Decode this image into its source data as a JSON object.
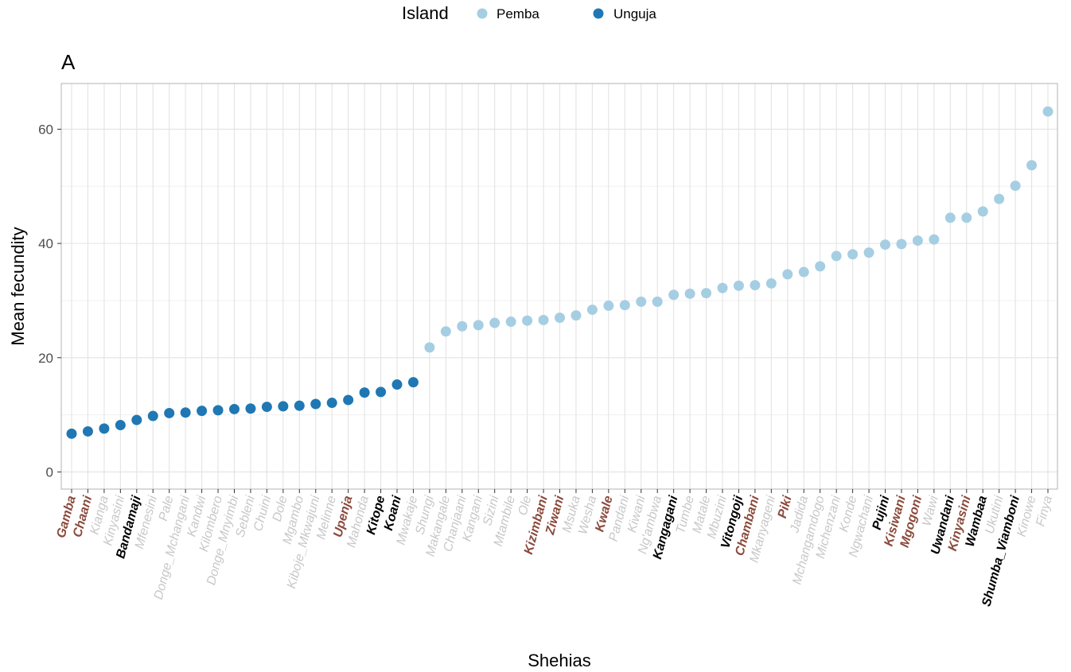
{
  "chart_data": {
    "type": "scatter",
    "panel_tag": "A",
    "xlabel": "Shehias",
    "ylabel": "Mean fecundity",
    "ylim": [
      -3,
      68
    ],
    "yticks": [
      0,
      20,
      40,
      60
    ],
    "grid": true,
    "legend": {
      "title": "Island",
      "position": "top",
      "entries": [
        {
          "name": "Pemba",
          "color": "#a6cee3"
        },
        {
          "name": "Unguja",
          "color": "#1f78b4"
        }
      ]
    },
    "label_styles": {
      "grey": {
        "color": "#c8c8c8",
        "bold": false
      },
      "black": {
        "color": "#000000",
        "bold": true
      },
      "brown": {
        "color": "#8b4a3c",
        "bold": true
      }
    },
    "categories": [
      "Gamba",
      "Chaani",
      "Kianga",
      "Kinyasini",
      "Bandamaji",
      "Mfenesini",
      "Pale",
      "Donge_Mchangani",
      "Kandwi",
      "Kilombero",
      "Donge_Mnyimbi",
      "Sebleni",
      "Chuini",
      "Dole",
      "Mgambo",
      "Kiboje_Mkwajuni",
      "Melinne",
      "Upenja",
      "Mahonda",
      "Kitope",
      "Koani",
      "Mwakaje",
      "Shungi",
      "Makangale",
      "Chanjaani",
      "Kangani",
      "Sizini",
      "Mtambile",
      "Ole",
      "Kizimbani",
      "Ziwani",
      "Msuka",
      "Wesha",
      "Kwale",
      "Pandani",
      "Kiwani",
      "Ng'ambwa",
      "Kangagani",
      "Tumbe",
      "Matale",
      "Mbuzini",
      "Vitongoji",
      "Chambani",
      "Mkanyageni",
      "Piki",
      "Jadida",
      "Mchangamdogo",
      "Michenzani",
      "Konde",
      "Ngwachani",
      "Pujini",
      "Kisiwani",
      "Mgogoni",
      "Wawi",
      "Uwandani",
      "Kinyasini",
      "Wambaa",
      "Ukutini",
      "Shumba_Viamboni",
      "Kinowe",
      "Finya"
    ],
    "label_style_per_category": [
      "brown",
      "brown",
      "grey",
      "grey",
      "black",
      "grey",
      "grey",
      "grey",
      "grey",
      "grey",
      "grey",
      "grey",
      "grey",
      "grey",
      "grey",
      "grey",
      "grey",
      "brown",
      "grey",
      "black",
      "black",
      "grey",
      "grey",
      "grey",
      "grey",
      "grey",
      "grey",
      "grey",
      "grey",
      "brown",
      "brown",
      "grey",
      "grey",
      "brown",
      "grey",
      "grey",
      "grey",
      "black",
      "grey",
      "grey",
      "grey",
      "black",
      "brown",
      "grey",
      "brown",
      "grey",
      "grey",
      "grey",
      "grey",
      "grey",
      "black",
      "brown",
      "brown",
      "grey",
      "black",
      "brown",
      "black",
      "grey",
      "black",
      "grey",
      "grey"
    ],
    "island_per_category": [
      "Unguja",
      "Unguja",
      "Unguja",
      "Unguja",
      "Unguja",
      "Unguja",
      "Unguja",
      "Unguja",
      "Unguja",
      "Unguja",
      "Unguja",
      "Unguja",
      "Unguja",
      "Unguja",
      "Unguja",
      "Unguja",
      "Unguja",
      "Unguja",
      "Unguja",
      "Unguja",
      "Unguja",
      "Unguja",
      "Pemba",
      "Pemba",
      "Pemba",
      "Pemba",
      "Pemba",
      "Pemba",
      "Pemba",
      "Pemba",
      "Pemba",
      "Pemba",
      "Pemba",
      "Pemba",
      "Pemba",
      "Pemba",
      "Pemba",
      "Pemba",
      "Pemba",
      "Pemba",
      "Pemba",
      "Pemba",
      "Pemba",
      "Pemba",
      "Pemba",
      "Pemba",
      "Pemba",
      "Pemba",
      "Pemba",
      "Pemba",
      "Pemba",
      "Pemba",
      "Pemba",
      "Pemba",
      "Pemba",
      "Pemba",
      "Pemba",
      "Pemba",
      "Pemba",
      "Pemba",
      "Pemba"
    ],
    "values": [
      6.7,
      7.1,
      7.6,
      8.2,
      9.1,
      9.8,
      10.3,
      10.4,
      10.7,
      10.8,
      11.0,
      11.1,
      11.4,
      11.5,
      11.6,
      11.9,
      12.1,
      12.6,
      13.9,
      14.0,
      15.3,
      15.7,
      21.8,
      24.6,
      25.5,
      25.7,
      26.1,
      26.3,
      26.5,
      26.6,
      27.0,
      27.4,
      28.4,
      29.1,
      29.2,
      29.8,
      29.8,
      31.0,
      31.2,
      31.3,
      32.2,
      32.6,
      32.7,
      33.0,
      34.6,
      35.0,
      36.0,
      37.8,
      38.1,
      38.4,
      39.8,
      39.9,
      40.5,
      40.7,
      44.5,
      44.5,
      45.6,
      47.8,
      50.1,
      53.7,
      63.1
    ]
  }
}
